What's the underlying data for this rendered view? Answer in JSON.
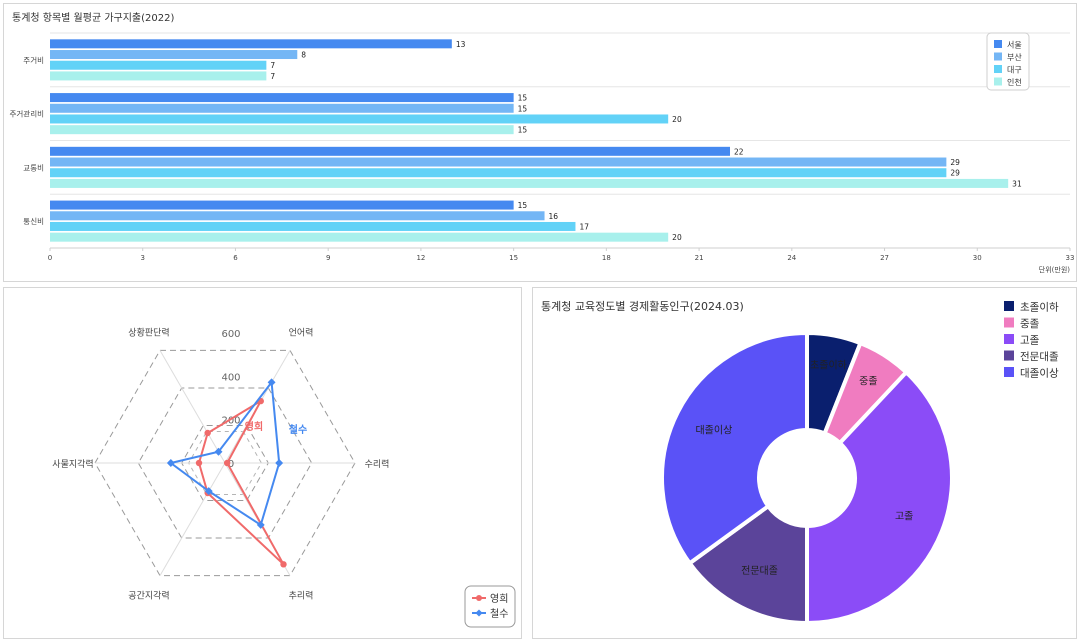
{
  "bar_chart_panel": {
    "title": "통계청 항목별 월평균 가구지출(2022)"
  },
  "radar_chart_panel": {
    "title": ""
  },
  "donut_chart_panel": {
    "title": "통계청 교육정도별 경제활동인구(2024.03)"
  },
  "chart_data": [
    {
      "type": "bar",
      "orientation": "horizontal",
      "title": "통계청 항목별 월평균 가구지출(2022)",
      "categories": [
        "주거비",
        "주거관리비",
        "교통비",
        "통신비"
      ],
      "series": [
        {
          "name": "서울",
          "color": "#4589f0",
          "values": [
            13,
            15,
            22,
            15
          ]
        },
        {
          "name": "부산",
          "color": "#74b6f5",
          "values": [
            8,
            15,
            29,
            16
          ]
        },
        {
          "name": "대구",
          "color": "#62d2f7",
          "values": [
            7,
            20,
            29,
            17
          ]
        },
        {
          "name": "인천",
          "color": "#a8f0ec",
          "values": [
            7,
            15,
            31,
            20
          ]
        }
      ],
      "xlim": [
        0,
        33
      ],
      "xticks": [
        0,
        3,
        6,
        9,
        12,
        15,
        18,
        21,
        24,
        27,
        30,
        33
      ],
      "unit_label": "단위(만원)",
      "legend": "top-right",
      "grid": true
    },
    {
      "type": "radar",
      "axes": [
        "언어력",
        "수리력",
        "추리력",
        "공간지각력",
        "사물지각력",
        "상황판단력"
      ],
      "ticks": [
        0,
        200,
        400,
        600
      ],
      "max": 600,
      "series": [
        {
          "name": "영희",
          "color": "#f06a6a",
          "values": [
            330,
            10,
            540,
            160,
            120,
            160
          ]
        },
        {
          "name": "철수",
          "color": "#4589f0",
          "values": [
            430,
            250,
            330,
            150,
            250,
            60
          ]
        }
      ],
      "legend": "bottom-right"
    },
    {
      "type": "pie",
      "variant": "donut",
      "title": "통계청 교육정도별 경제활동인구(2024.03)",
      "labels": [
        "초졸이하",
        "중졸",
        "고졸",
        "전문대졸",
        "대졸이상"
      ],
      "values": [
        6,
        6,
        38,
        15,
        35
      ],
      "colors": [
        "#0a1f6e",
        "#f07cc0",
        "#8b4cf7",
        "#5b449a",
        "#5a52f7"
      ],
      "legend": "top-right"
    }
  ]
}
